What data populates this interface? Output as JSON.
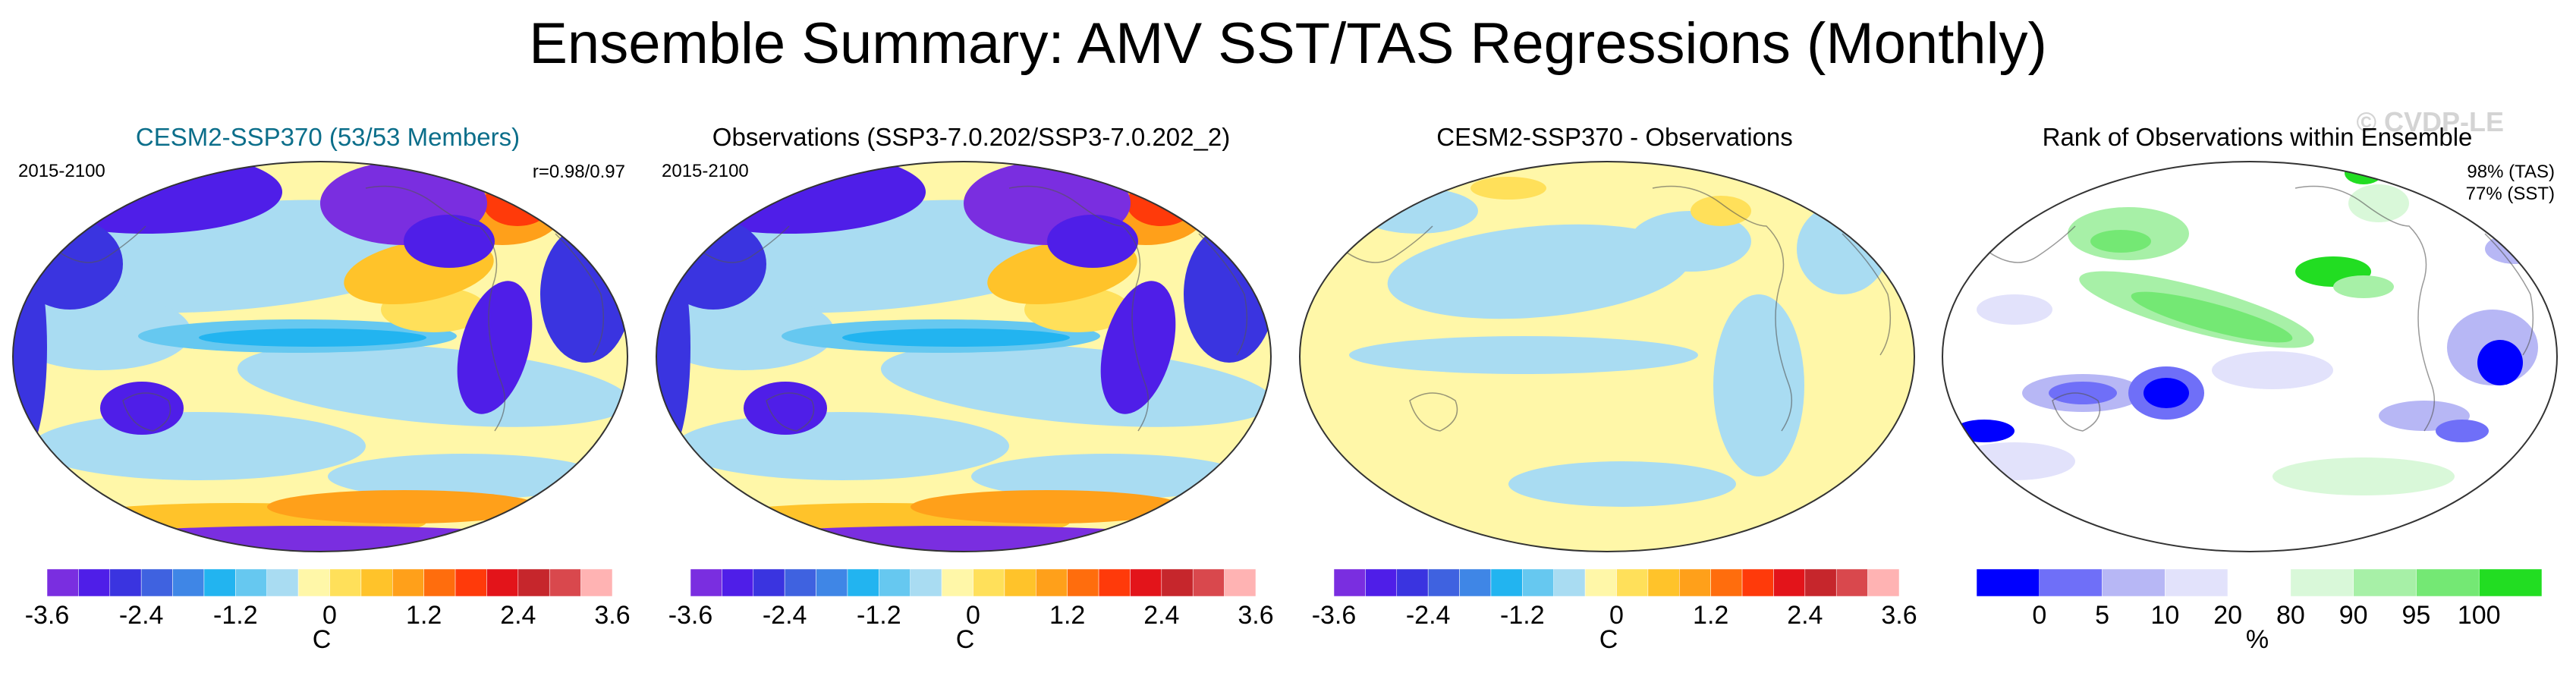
{
  "title": "Ensemble Summary: AMV SST/TAS Regressions (Monthly)",
  "watermark": "© CVDP-LE",
  "colors": {
    "div_palette": [
      "#7a2ee0",
      "#4f1ee8",
      "#3a34e0",
      "#3f62e0",
      "#3f86e6",
      "#22b4f0",
      "#66c8f0",
      "#a9dcf2",
      "#fff7a8",
      "#ffe05a",
      "#ffc32a",
      "#ffa01a",
      "#ff6d0d",
      "#ff3a0a",
      "#e3141a",
      "#c6262c",
      "#d9484d",
      "#ffb3b3"
    ],
    "rank_palette": [
      "#0000ff",
      "#6f6ff8",
      "#b7b7f5",
      "#e2e2fb",
      "#ffffff",
      "#d9f8d9",
      "#a7f0a7",
      "#74e874",
      "#22dd22"
    ]
  },
  "panels": [
    {
      "title": "CESM2-SSP370 (53/53 Members)",
      "left_label": "2015-2100",
      "right_label": [
        "r=0.98/0.97"
      ],
      "colorbar": {
        "ticks": [
          "-3.6",
          "-2.4",
          "-1.2",
          "0",
          "1.2",
          "2.4",
          "3.6"
        ],
        "units": "C"
      },
      "field_scale": 1.0
    },
    {
      "title": "Observations (SSP3-7.0.202/SSP3-7.0.202_2)",
      "left_label": "2015-2100",
      "right_label": [],
      "colorbar": {
        "ticks": [
          "-3.6",
          "-2.4",
          "-1.2",
          "0",
          "1.2",
          "2.4",
          "3.6"
        ],
        "units": "C"
      },
      "field_scale": 1.0
    },
    {
      "title": "CESM2-SSP370 - Observations",
      "left_label": "",
      "right_label": [],
      "colorbar": {
        "ticks": [
          "-3.6",
          "-2.4",
          "-1.2",
          "0",
          "1.2",
          "2.4",
          "3.6"
        ],
        "units": "C"
      },
      "field_scale": 0.12
    },
    {
      "title": "Rank of Observations within Ensemble",
      "left_label": "",
      "right_label": [
        "98% (TAS)",
        "77% (SST)"
      ],
      "colorbar": {
        "ticks": [
          "0",
          "5",
          "10",
          "20",
          "80",
          "90",
          "95",
          "100"
        ],
        "units": "%"
      },
      "field_scale": 0
    }
  ]
}
